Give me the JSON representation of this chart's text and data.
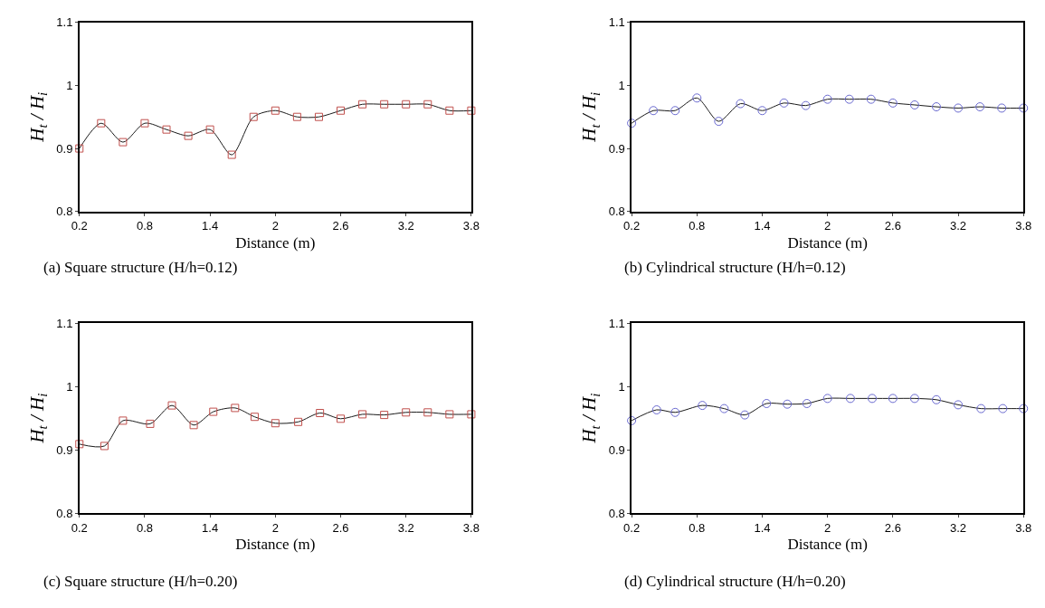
{
  "chart_data": [
    {
      "type": "line",
      "title": "(a) Square structure (H/h=0.12)",
      "xlabel": "Distance (m)",
      "ylabel": "H$_{t}$ / H$_{i}$",
      "xlim": [
        0.2,
        3.8
      ],
      "xticks": [
        0.2,
        0.8,
        1.4,
        2,
        2.6,
        3.2,
        3.8
      ],
      "ylim": [
        0.8,
        1.1
      ],
      "yticks": [
        0.8,
        0.9,
        1,
        1.1
      ],
      "marker": "square",
      "line_style": "solid",
      "x": [
        0.2,
        0.4,
        0.6,
        0.8,
        1.0,
        1.2,
        1.4,
        1.6,
        1.8,
        2.0,
        2.2,
        2.4,
        2.6,
        2.8,
        3.0,
        3.2,
        3.4,
        3.6,
        3.8
      ],
      "series": [
        {
          "color": "#c0504d",
          "values": [
            0.9,
            0.94,
            0.91,
            0.94,
            0.93,
            0.92,
            0.93,
            0.89,
            0.95,
            0.96,
            0.95,
            0.95,
            0.96,
            0.97,
            0.97,
            0.97,
            0.97,
            0.96,
            0.96
          ]
        }
      ]
    },
    {
      "type": "line",
      "title": "(b) Cylindrical structure (H/h=0.12)",
      "xlabel": "Distance (m)",
      "ylabel": "H$_{t}$ / H$_{i}$",
      "xlim": [
        0.2,
        3.8
      ],
      "xticks": [
        0.2,
        0.8,
        1.4,
        2,
        2.6,
        3.2,
        3.8
      ],
      "ylim": [
        0.8,
        1.1
      ],
      "yticks": [
        0.8,
        0.9,
        1,
        1.1
      ],
      "marker": "circle",
      "line_style": "solid",
      "x": [
        0.2,
        0.4,
        0.6,
        0.8,
        1.0,
        1.2,
        1.4,
        1.6,
        1.8,
        2.0,
        2.2,
        2.4,
        2.6,
        2.8,
        3.0,
        3.2,
        3.4,
        3.6,
        3.8
      ],
      "series": [
        {
          "color": "#6a6ad0",
          "values": [
            0.94,
            0.96,
            0.96,
            0.98,
            0.943,
            0.971,
            0.96,
            0.972,
            0.968,
            0.978,
            0.978,
            0.978,
            0.972,
            0.969,
            0.966,
            0.964,
            0.966,
            0.964,
            0.964
          ]
        }
      ]
    },
    {
      "type": "line",
      "title": "(c) Square structure (H/h=0.20)",
      "xlabel": "Distance (m)",
      "ylabel": "H$_{t}$ / H$_{i}$",
      "xlim": [
        0.2,
        3.8
      ],
      "xticks": [
        0.2,
        0.8,
        1.4,
        2,
        2.6,
        3.2,
        3.8
      ],
      "ylim": [
        0.8,
        1.1
      ],
      "yticks": [
        0.8,
        0.9,
        1,
        1.1
      ],
      "marker": "square",
      "line_style": "solid",
      "x": [
        0.2,
        0.43,
        0.6,
        0.85,
        1.05,
        1.25,
        1.43,
        1.63,
        1.81,
        2.0,
        2.21,
        2.41,
        2.6,
        2.8,
        3.0,
        3.2,
        3.4,
        3.6,
        3.8
      ],
      "series": [
        {
          "color": "#c0504d",
          "values": [
            0.909,
            0.906,
            0.946,
            0.941,
            0.97,
            0.939,
            0.96,
            0.966,
            0.952,
            0.942,
            0.944,
            0.958,
            0.949,
            0.956,
            0.955,
            0.959,
            0.959,
            0.956,
            0.956
          ]
        }
      ]
    },
    {
      "type": "line",
      "title": "(d) Cylindrical structure (H/h=0.20)",
      "xlabel": "Distance (m)",
      "ylabel": "H$_{t}$ / H$_{i}$",
      "xlim": [
        0.2,
        3.8
      ],
      "xticks": [
        0.2,
        0.8,
        1.4,
        2,
        2.6,
        3.2,
        3.8
      ],
      "ylim": [
        0.8,
        1.1
      ],
      "yticks": [
        0.8,
        0.9,
        1,
        1.1
      ],
      "marker": "circle",
      "line_style": "solid",
      "x": [
        0.2,
        0.43,
        0.6,
        0.85,
        1.05,
        1.24,
        1.44,
        1.63,
        1.81,
        2.0,
        2.21,
        2.41,
        2.6,
        2.8,
        3.0,
        3.2,
        3.41,
        3.61,
        3.8
      ],
      "series": [
        {
          "color": "#6a6ad0",
          "values": [
            0.946,
            0.963,
            0.959,
            0.97,
            0.965,
            0.955,
            0.973,
            0.972,
            0.973,
            0.981,
            0.981,
            0.981,
            0.981,
            0.981,
            0.979,
            0.971,
            0.965,
            0.965,
            0.965
          ]
        }
      ]
    }
  ]
}
